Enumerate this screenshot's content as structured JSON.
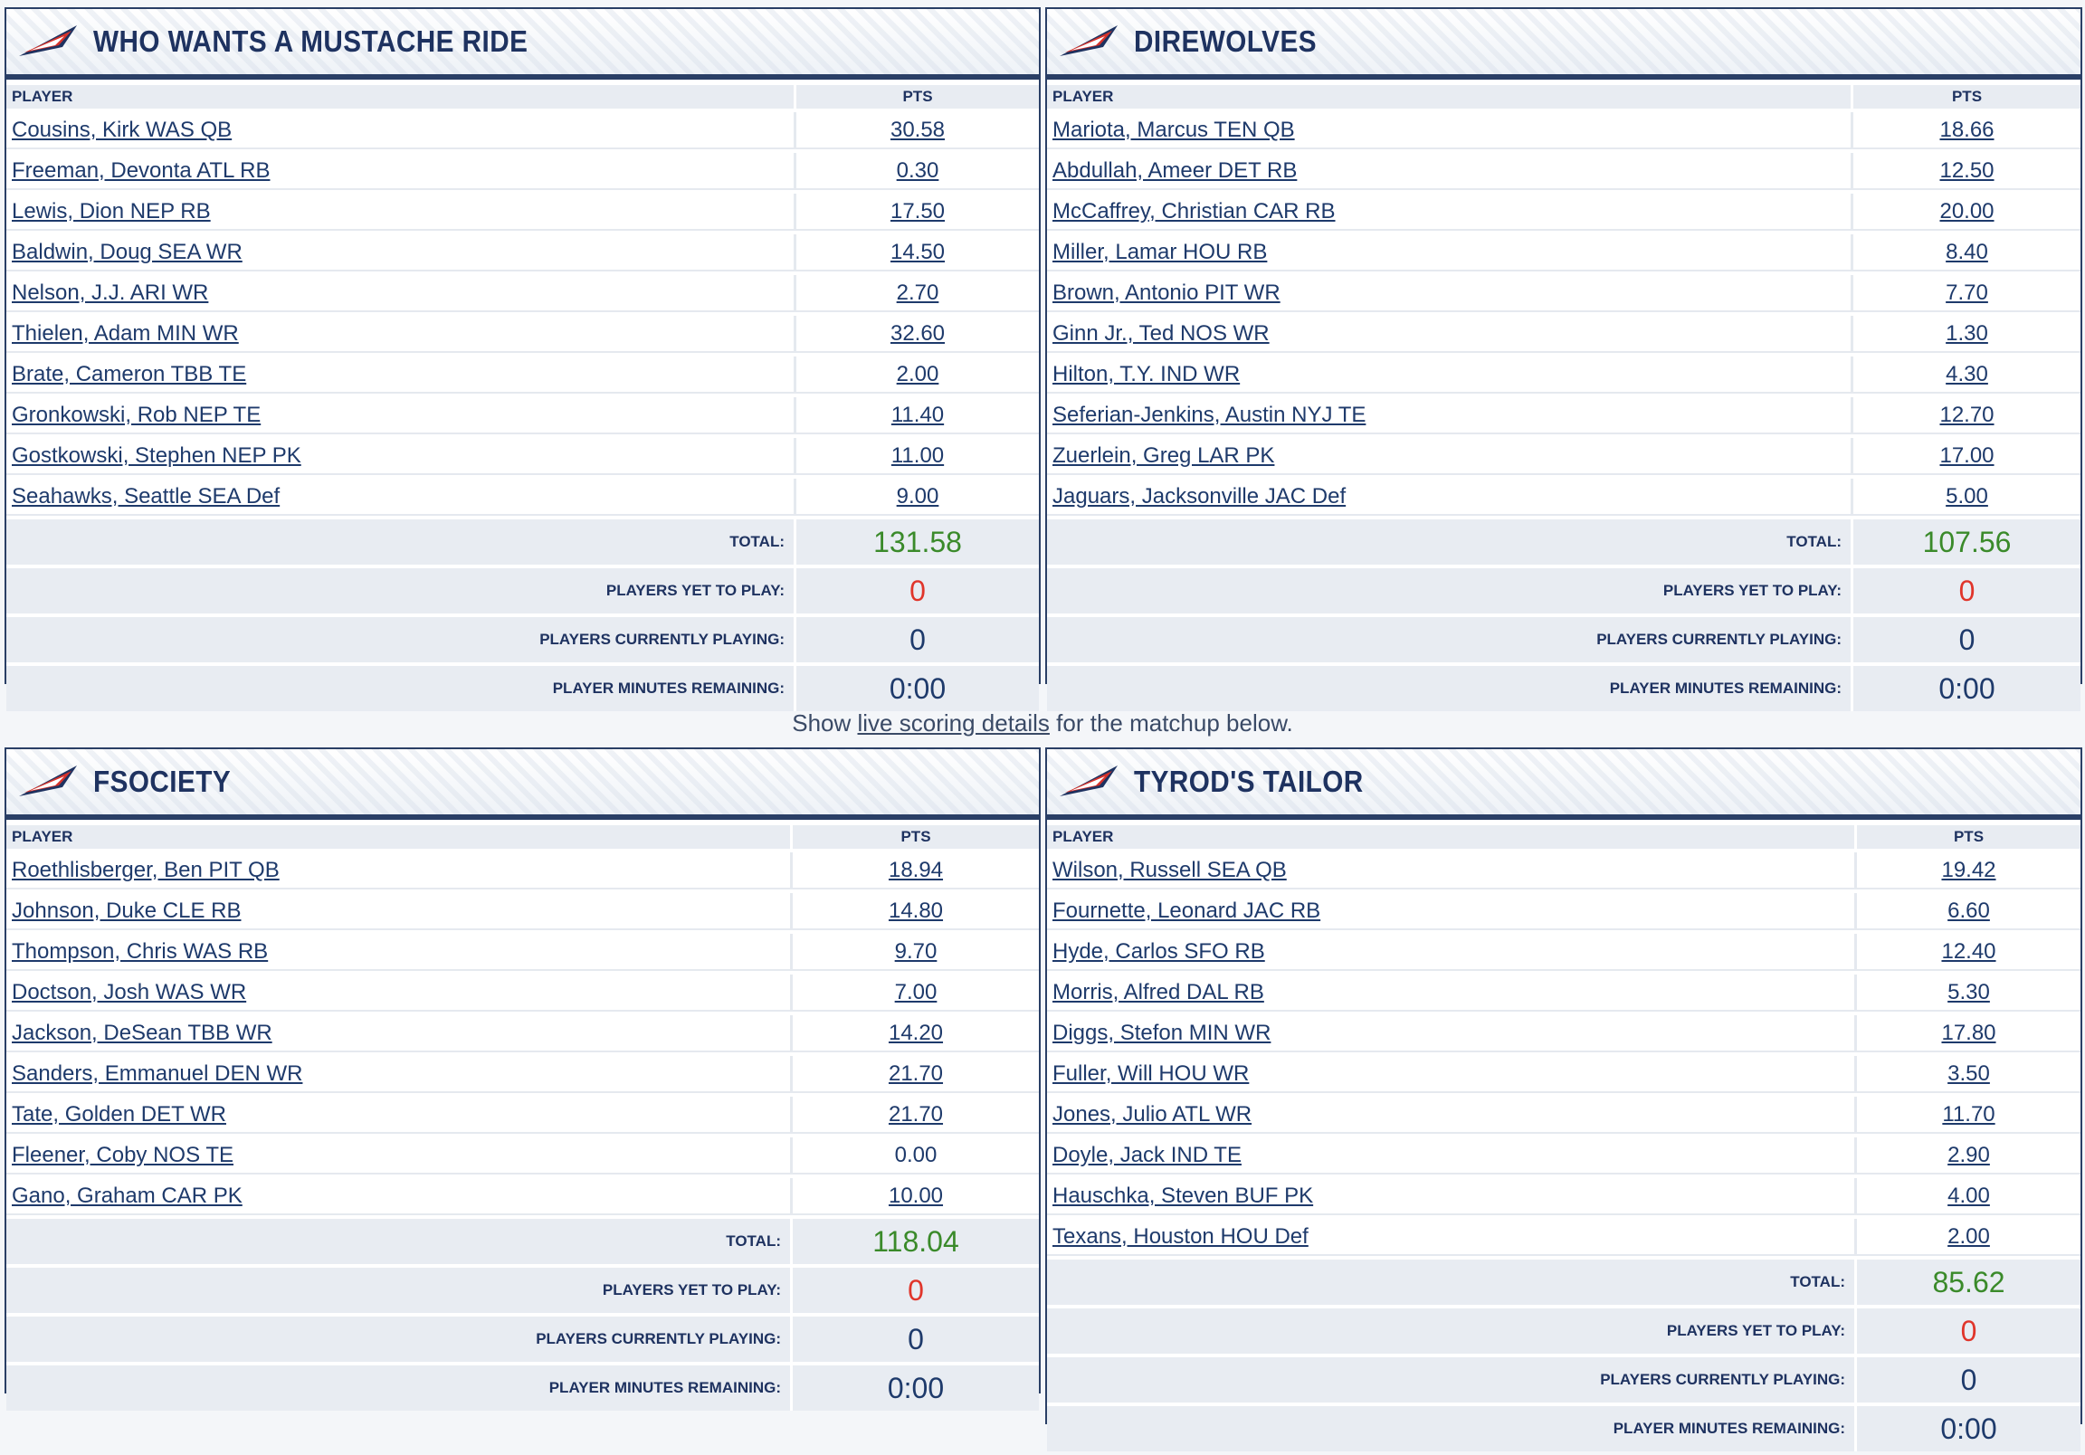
{
  "columns": {
    "player": "PLAYER",
    "pts": "PTS"
  },
  "summary_labels": {
    "total": "TOTAL:",
    "yet": "PLAYERS YET TO PLAY:",
    "playing": "PLAYERS CURRENTLY PLAYING:",
    "minutes": "PLAYER MINUTES REMAINING:"
  },
  "caption": {
    "before": "Show ",
    "link": "live scoring details",
    "after": " for the matchup below."
  },
  "colors": {
    "navy": "#1e3260",
    "total_green": "#3a8a2a",
    "yet_red": "#e0352b"
  },
  "teams": [
    {
      "name": "WHO WANTS A MUSTACHE RIDE",
      "players": [
        {
          "name": "Cousins, Kirk WAS QB",
          "pts": "30.58"
        },
        {
          "name": "Freeman, Devonta ATL RB",
          "pts": "0.30"
        },
        {
          "name": "Lewis, Dion NEP RB",
          "pts": "17.50"
        },
        {
          "name": "Baldwin, Doug SEA WR",
          "pts": "14.50"
        },
        {
          "name": "Nelson, J.J. ARI WR",
          "pts": "2.70"
        },
        {
          "name": "Thielen, Adam MIN WR",
          "pts": "32.60"
        },
        {
          "name": "Brate, Cameron TBB TE",
          "pts": "2.00"
        },
        {
          "name": "Gronkowski, Rob NEP TE",
          "pts": "11.40"
        },
        {
          "name": "Gostkowski, Stephen NEP PK",
          "pts": "11.00"
        },
        {
          "name": "Seahawks, Seattle SEA Def",
          "pts": "9.00"
        }
      ],
      "total": "131.58",
      "yet": "0",
      "playing": "0",
      "minutes": "0:00"
    },
    {
      "name": "DIREWOLVES",
      "players": [
        {
          "name": "Mariota, Marcus TEN QB",
          "pts": "18.66"
        },
        {
          "name": "Abdullah, Ameer DET RB",
          "pts": "12.50"
        },
        {
          "name": "McCaffrey, Christian CAR RB",
          "pts": "20.00"
        },
        {
          "name": "Miller, Lamar HOU RB",
          "pts": "8.40"
        },
        {
          "name": "Brown, Antonio PIT WR",
          "pts": "7.70"
        },
        {
          "name": "Ginn Jr., Ted NOS WR",
          "pts": "1.30"
        },
        {
          "name": "Hilton, T.Y. IND WR",
          "pts": "4.30"
        },
        {
          "name": "Seferian-Jenkins, Austin NYJ TE",
          "pts": "12.70"
        },
        {
          "name": "Zuerlein, Greg LAR PK",
          "pts": "17.00"
        },
        {
          "name": "Jaguars, Jacksonville JAC Def",
          "pts": "5.00"
        }
      ],
      "total": "107.56",
      "yet": "0",
      "playing": "0",
      "minutes": "0:00"
    },
    {
      "name": "FSOCIETY",
      "players": [
        {
          "name": "Roethlisberger, Ben PIT QB",
          "pts": "18.94"
        },
        {
          "name": "Johnson, Duke CLE RB",
          "pts": "14.80"
        },
        {
          "name": "Thompson, Chris WAS RB",
          "pts": "9.70"
        },
        {
          "name": "Doctson, Josh WAS WR",
          "pts": "7.00"
        },
        {
          "name": "Jackson, DeSean TBB WR",
          "pts": "14.20"
        },
        {
          "name": "Sanders, Emmanuel DEN WR",
          "pts": "21.70"
        },
        {
          "name": "Tate, Golden DET WR",
          "pts": "21.70"
        },
        {
          "name": "Fleener, Coby NOS TE",
          "pts": "0.00"
        },
        {
          "name": "Gano, Graham CAR PK",
          "pts": "10.00"
        }
      ],
      "total": "118.04",
      "yet": "0",
      "playing": "0",
      "minutes": "0:00"
    },
    {
      "name": "TYROD'S TAILOR",
      "players": [
        {
          "name": "Wilson, Russell SEA QB",
          "pts": "19.42"
        },
        {
          "name": "Fournette, Leonard JAC RB",
          "pts": "6.60"
        },
        {
          "name": "Hyde, Carlos SFO RB",
          "pts": "12.40"
        },
        {
          "name": "Morris, Alfred DAL RB",
          "pts": "5.30"
        },
        {
          "name": "Diggs, Stefon MIN WR",
          "pts": "17.80"
        },
        {
          "name": "Fuller, Will HOU WR",
          "pts": "3.50"
        },
        {
          "name": "Jones, Julio ATL WR",
          "pts": "11.70"
        },
        {
          "name": "Doyle, Jack IND TE",
          "pts": "2.90"
        },
        {
          "name": "Hauschka, Steven BUF PK",
          "pts": "4.00"
        },
        {
          "name": "Texans, Houston HOU Def",
          "pts": "2.00"
        }
      ],
      "total": "85.62",
      "yet": "0",
      "playing": "0",
      "minutes": "0:00"
    }
  ]
}
